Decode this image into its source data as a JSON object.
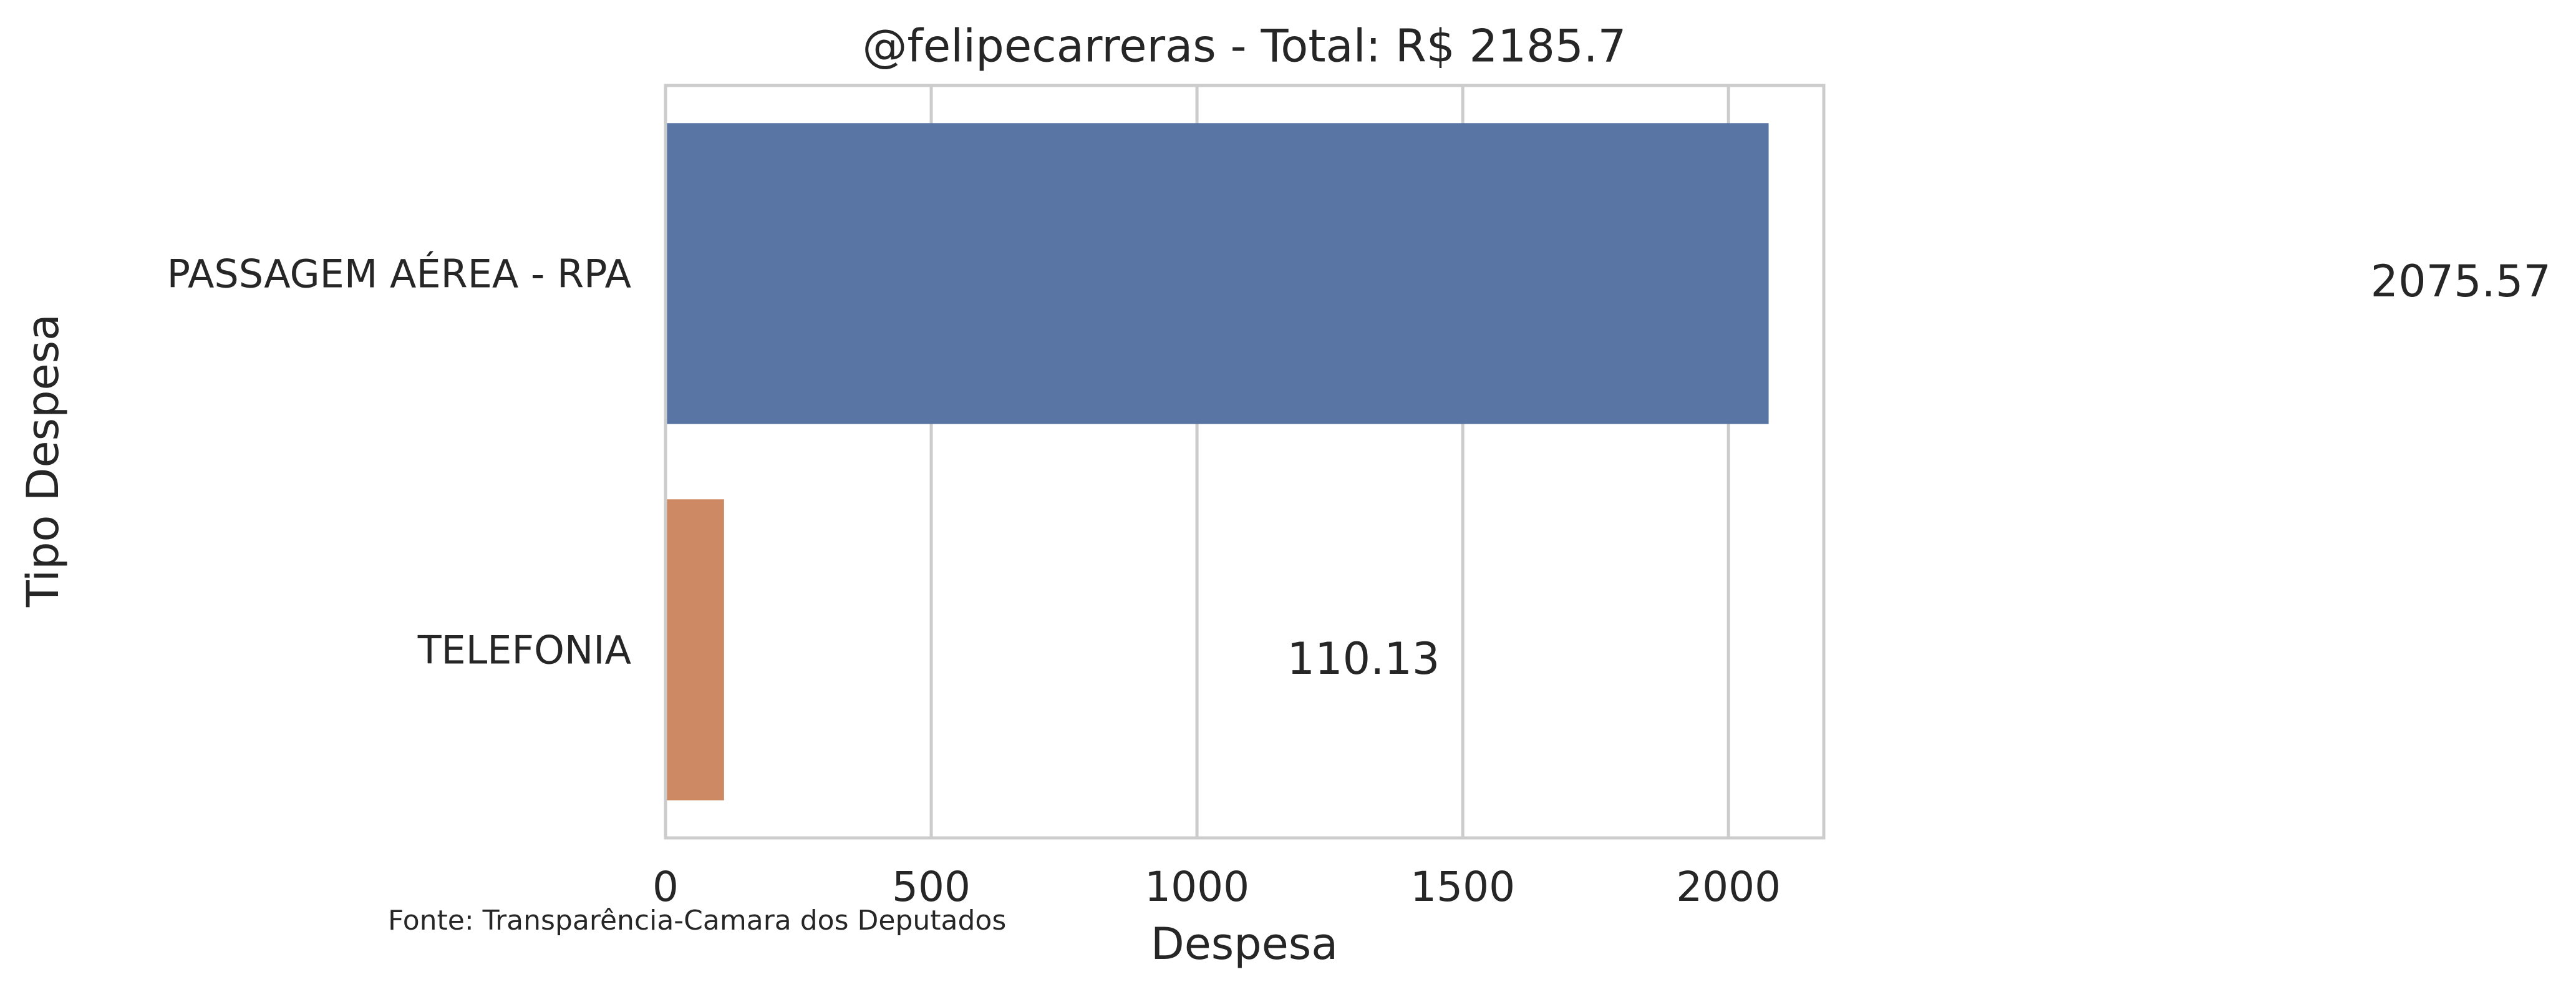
{
  "chart_data": {
    "type": "bar",
    "orientation": "horizontal",
    "title": "@felipecarreras - Total: R$ 2185.7",
    "source": "Fonte: Transparência-Camara dos Deputados",
    "x_label": "Despesa",
    "y_label": "Tipo Despesa",
    "categories": [
      "PASSAGEM AÉREA - RPA",
      "TELEFONIA"
    ],
    "values": [
      2075.57,
      110.13
    ],
    "colors": [
      "#5975a4",
      "#cc8963"
    ],
    "xlim": [
      0,
      2179.35
    ],
    "xticks": [
      0,
      500,
      1000,
      1500,
      2000
    ],
    "grid": true
  }
}
